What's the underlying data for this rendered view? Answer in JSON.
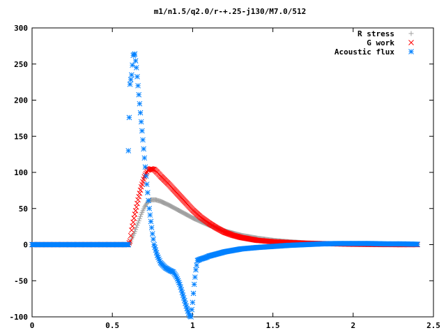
{
  "chart_data": {
    "type": "scatter",
    "title": "m1/n1.5/q2.0/r-+.25-j130/M7.0/512",
    "xlabel": "",
    "ylabel": "",
    "xlim": [
      0,
      2.5
    ],
    "ylim": [
      -100,
      300
    ],
    "xticks": [
      "0",
      "0.5",
      "1",
      "1.5",
      "2",
      "2.5"
    ],
    "yticks": [
      "300",
      "250",
      "200",
      "150",
      "100",
      "50",
      "0",
      "-50",
      "-100"
    ],
    "legend_position": "top-right",
    "grid": false,
    "series": [
      {
        "name": "R stress",
        "marker": "plus",
        "color": "#a0a0a0",
        "points": [
          [
            0.0,
            0
          ],
          [
            0.1,
            0
          ],
          [
            0.2,
            0
          ],
          [
            0.3,
            0
          ],
          [
            0.4,
            0
          ],
          [
            0.5,
            0
          ],
          [
            0.6,
            0
          ],
          [
            0.61,
            2
          ],
          [
            0.62,
            8
          ],
          [
            0.64,
            18
          ],
          [
            0.66,
            30
          ],
          [
            0.68,
            42
          ],
          [
            0.7,
            52
          ],
          [
            0.72,
            59
          ],
          [
            0.74,
            62
          ],
          [
            0.77,
            62
          ],
          [
            0.8,
            60
          ],
          [
            0.85,
            55
          ],
          [
            0.9,
            49
          ],
          [
            0.95,
            43
          ],
          [
            1.0,
            37
          ],
          [
            1.05,
            32
          ],
          [
            1.1,
            27
          ],
          [
            1.15,
            23
          ],
          [
            1.2,
            19
          ],
          [
            1.25,
            16
          ],
          [
            1.3,
            13
          ],
          [
            1.35,
            11
          ],
          [
            1.4,
            9
          ],
          [
            1.5,
            6
          ],
          [
            1.6,
            4
          ],
          [
            1.7,
            2.5
          ],
          [
            1.8,
            1.5
          ],
          [
            1.9,
            1
          ],
          [
            2.0,
            0.6
          ],
          [
            2.1,
            0.3
          ],
          [
            2.2,
            0.1
          ],
          [
            2.3,
            0
          ],
          [
            2.4,
            0
          ]
        ]
      },
      {
        "name": "G work",
        "marker": "cross",
        "color": "#ff0000",
        "points": [
          [
            0.0,
            0
          ],
          [
            0.1,
            0
          ],
          [
            0.2,
            0
          ],
          [
            0.3,
            0
          ],
          [
            0.4,
            0
          ],
          [
            0.5,
            0
          ],
          [
            0.6,
            0
          ],
          [
            0.61,
            5
          ],
          [
            0.62,
            20
          ],
          [
            0.64,
            42
          ],
          [
            0.66,
            62
          ],
          [
            0.68,
            80
          ],
          [
            0.7,
            94
          ],
          [
            0.72,
            103
          ],
          [
            0.74,
            105
          ],
          [
            0.76,
            104
          ],
          [
            0.78,
            100
          ],
          [
            0.8,
            95
          ],
          [
            0.85,
            84
          ],
          [
            0.9,
            72
          ],
          [
            0.95,
            60
          ],
          [
            1.0,
            48
          ],
          [
            1.05,
            38
          ],
          [
            1.1,
            30
          ],
          [
            1.15,
            23
          ],
          [
            1.2,
            17
          ],
          [
            1.25,
            13
          ],
          [
            1.3,
            10
          ],
          [
            1.35,
            8
          ],
          [
            1.4,
            6
          ],
          [
            1.5,
            4
          ],
          [
            1.6,
            3
          ],
          [
            1.7,
            2
          ],
          [
            1.8,
            1.5
          ],
          [
            1.9,
            1
          ],
          [
            2.0,
            0.5
          ],
          [
            2.1,
            0.3
          ],
          [
            2.2,
            0.1
          ],
          [
            2.3,
            0
          ],
          [
            2.4,
            0
          ]
        ]
      },
      {
        "name": "Acoustic flux",
        "marker": "star",
        "color": "#0080ff",
        "points": [
          [
            0.0,
            0
          ],
          [
            0.1,
            0
          ],
          [
            0.2,
            0
          ],
          [
            0.3,
            0
          ],
          [
            0.4,
            0
          ],
          [
            0.5,
            0
          ],
          [
            0.6,
            0
          ],
          [
            0.6,
            130
          ],
          [
            0.61,
            222
          ],
          [
            0.62,
            235
          ],
          [
            0.63,
            262
          ],
          [
            0.64,
            264
          ],
          [
            0.65,
            245
          ],
          [
            0.66,
            220
          ],
          [
            0.67,
            195
          ],
          [
            0.68,
            170
          ],
          [
            0.69,
            145
          ],
          [
            0.7,
            120
          ],
          [
            0.71,
            95
          ],
          [
            0.72,
            72
          ],
          [
            0.73,
            50
          ],
          [
            0.74,
            32
          ],
          [
            0.75,
            15
          ],
          [
            0.76,
            0
          ],
          [
            0.78,
            -15
          ],
          [
            0.8,
            -25
          ],
          [
            0.83,
            -32
          ],
          [
            0.86,
            -36
          ],
          [
            0.88,
            -38
          ],
          [
            0.9,
            -45
          ],
          [
            0.92,
            -55
          ],
          [
            0.94,
            -70
          ],
          [
            0.96,
            -85
          ],
          [
            0.97,
            -92
          ],
          [
            0.98,
            -98
          ],
          [
            0.99,
            -100
          ],
          [
            1.0,
            -80
          ],
          [
            1.01,
            -55
          ],
          [
            1.02,
            -35
          ],
          [
            1.03,
            -22
          ],
          [
            1.05,
            -20
          ],
          [
            1.08,
            -18
          ],
          [
            1.1,
            -16
          ],
          [
            1.15,
            -13
          ],
          [
            1.2,
            -10
          ],
          [
            1.25,
            -8
          ],
          [
            1.3,
            -6
          ],
          [
            1.35,
            -5
          ],
          [
            1.4,
            -4
          ],
          [
            1.5,
            -2.5
          ],
          [
            1.6,
            -1
          ],
          [
            1.7,
            0
          ],
          [
            1.8,
            1
          ],
          [
            1.9,
            1.5
          ],
          [
            2.0,
            1.5
          ],
          [
            2.1,
            1.5
          ],
          [
            2.2,
            1
          ],
          [
            2.3,
            1
          ],
          [
            2.4,
            0.5
          ]
        ]
      }
    ]
  }
}
